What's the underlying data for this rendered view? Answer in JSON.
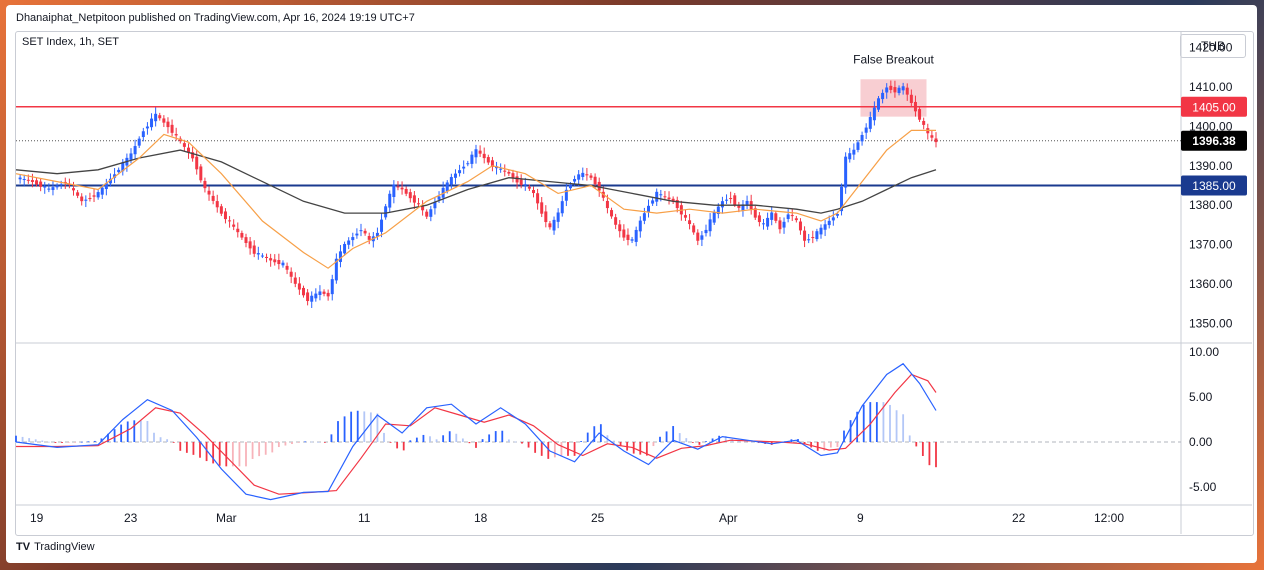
{
  "header": {
    "published": "Dhanaiphat_Netpitoon published on TradingView.com, Apr 16, 2024 19:19 UTC+7"
  },
  "symbol": "SET Index, 1h, SET",
  "currency": "THB",
  "footer": {
    "brand": "TradingView"
  },
  "colors": {
    "up": "#2962ff",
    "down": "#f23645",
    "ema_fast": "#f7a048",
    "ma_slow": "#444444",
    "resistance": "#f23645",
    "support": "#1a3a8f"
  },
  "chart_data": [
    {
      "type": "candlestick",
      "title": "SET Index, 1h, SET",
      "ylim": [
        1345,
        1424
      ],
      "yticks": [
        1350,
        1360,
        1370,
        1380,
        1390,
        1400,
        1410,
        1420
      ],
      "ytick_labels": [
        "1350.00",
        "1360.00",
        "1370.00",
        "1380.00",
        "1390.00",
        "1400.00",
        "1410.00",
        "1420.00"
      ],
      "xtick_labels": [
        "19",
        "23",
        "Mar",
        "11",
        "18",
        "25",
        "Apr",
        "9",
        "22",
        "12:00"
      ],
      "levels": [
        {
          "name": "resistance",
          "value": 1405.0,
          "label": "1405.00"
        },
        {
          "name": "support",
          "value": 1385.0,
          "label": "1385.00"
        }
      ],
      "last_price": {
        "value": 1396.38,
        "label": "1396.38"
      },
      "annotation": {
        "text": "False Breakout"
      },
      "close_path": [
        [
          0,
          1387
        ],
        [
          4,
          1386
        ],
        [
          8,
          1384
        ],
        [
          12,
          1386
        ],
        [
          16,
          1381
        ],
        [
          20,
          1383
        ],
        [
          24,
          1388
        ],
        [
          28,
          1393
        ],
        [
          31,
          1399
        ],
        [
          34,
          1403
        ],
        [
          37,
          1400
        ],
        [
          40,
          1396
        ],
        [
          43,
          1392
        ],
        [
          46,
          1384
        ],
        [
          50,
          1378
        ],
        [
          54,
          1373
        ],
        [
          58,
          1368
        ],
        [
          62,
          1366
        ],
        [
          65,
          1365
        ],
        [
          68,
          1360
        ],
        [
          71,
          1356
        ],
        [
          74,
          1358
        ],
        [
          76,
          1357
        ],
        [
          78,
          1366
        ],
        [
          80,
          1370
        ],
        [
          82,
          1372
        ],
        [
          84,
          1374
        ],
        [
          86,
          1371
        ],
        [
          88,
          1373
        ],
        [
          90,
          1380
        ],
        [
          92,
          1385
        ],
        [
          94,
          1384
        ],
        [
          96,
          1382
        ],
        [
          98,
          1380
        ],
        [
          100,
          1377
        ],
        [
          102,
          1381
        ],
        [
          104,
          1384
        ],
        [
          106,
          1387
        ],
        [
          108,
          1389
        ],
        [
          110,
          1391
        ],
        [
          112,
          1394
        ],
        [
          114,
          1392
        ],
        [
          116,
          1390
        ],
        [
          118,
          1389
        ],
        [
          120,
          1388
        ],
        [
          122,
          1386
        ],
        [
          124,
          1385
        ],
        [
          126,
          1383
        ],
        [
          128,
          1378
        ],
        [
          130,
          1374
        ],
        [
          132,
          1378
        ],
        [
          134,
          1384
        ],
        [
          136,
          1387
        ],
        [
          138,
          1388
        ],
        [
          140,
          1387
        ],
        [
          142,
          1384
        ],
        [
          144,
          1379
        ],
        [
          146,
          1375
        ],
        [
          148,
          1372
        ],
        [
          150,
          1371
        ],
        [
          152,
          1376
        ],
        [
          154,
          1380
        ],
        [
          156,
          1383
        ],
        [
          158,
          1382
        ],
        [
          160,
          1381
        ],
        [
          162,
          1378
        ],
        [
          164,
          1375
        ],
        [
          166,
          1371
        ],
        [
          168,
          1374
        ],
        [
          170,
          1378
        ],
        [
          172,
          1381
        ],
        [
          174,
          1382
        ],
        [
          176,
          1379
        ],
        [
          178,
          1381
        ],
        [
          180,
          1377
        ],
        [
          182,
          1375
        ],
        [
          184,
          1378
        ],
        [
          186,
          1374
        ],
        [
          188,
          1378
        ],
        [
          190,
          1376
        ],
        [
          192,
          1371
        ],
        [
          194,
          1372
        ],
        [
          196,
          1374
        ],
        [
          198,
          1376
        ],
        [
          200,
          1378
        ],
        [
          202,
          1392
        ],
        [
          204,
          1394
        ],
        [
          206,
          1398
        ],
        [
          208,
          1402
        ],
        [
          210,
          1407
        ],
        [
          212,
          1410
        ],
        [
          214,
          1409
        ],
        [
          216,
          1410
        ],
        [
          218,
          1406
        ],
        [
          220,
          1402
        ],
        [
          222,
          1398
        ],
        [
          224,
          1396
        ]
      ],
      "ema_fast_path": [
        [
          0,
          1388
        ],
        [
          10,
          1386
        ],
        [
          20,
          1384
        ],
        [
          30,
          1392
        ],
        [
          36,
          1398
        ],
        [
          42,
          1396
        ],
        [
          50,
          1388
        ],
        [
          60,
          1376
        ],
        [
          70,
          1368
        ],
        [
          76,
          1364
        ],
        [
          82,
          1369
        ],
        [
          90,
          1373
        ],
        [
          100,
          1381
        ],
        [
          110,
          1386
        ],
        [
          116,
          1390
        ],
        [
          124,
          1388
        ],
        [
          132,
          1383
        ],
        [
          140,
          1385
        ],
        [
          148,
          1379
        ],
        [
          156,
          1378
        ],
        [
          164,
          1379
        ],
        [
          172,
          1378
        ],
        [
          180,
          1379
        ],
        [
          190,
          1378
        ],
        [
          196,
          1376
        ],
        [
          200,
          1378
        ],
        [
          206,
          1386
        ],
        [
          212,
          1394
        ],
        [
          218,
          1399
        ],
        [
          224,
          1399
        ]
      ],
      "ma_slow_path": [
        [
          0,
          1389
        ],
        [
          10,
          1388
        ],
        [
          20,
          1389
        ],
        [
          30,
          1392
        ],
        [
          40,
          1394
        ],
        [
          50,
          1391
        ],
        [
          60,
          1386
        ],
        [
          70,
          1381
        ],
        [
          80,
          1378
        ],
        [
          90,
          1378
        ],
        [
          100,
          1380
        ],
        [
          110,
          1384
        ],
        [
          120,
          1387
        ],
        [
          130,
          1386
        ],
        [
          140,
          1385
        ],
        [
          150,
          1383
        ],
        [
          160,
          1381
        ],
        [
          170,
          1380
        ],
        [
          180,
          1380
        ],
        [
          190,
          1379
        ],
        [
          196,
          1378
        ],
        [
          200,
          1379
        ],
        [
          206,
          1381
        ],
        [
          212,
          1384
        ],
        [
          218,
          1387
        ],
        [
          224,
          1389
        ]
      ]
    },
    {
      "type": "macd",
      "ylim": [
        -7,
        11
      ],
      "yticks": [
        -5,
        0,
        5,
        10
      ],
      "ytick_labels": [
        "-5.00",
        "0.00",
        "5.00",
        "10.00"
      ],
      "series": [
        {
          "name": "MACD",
          "points": [
            [
              0,
              0
            ],
            [
              10,
              -0.6
            ],
            [
              20,
              -0.3
            ],
            [
              26,
              2.5
            ],
            [
              32,
              4.7
            ],
            [
              38,
              3.5
            ],
            [
              44,
              0.5
            ],
            [
              50,
              -3.0
            ],
            [
              56,
              -5.8
            ],
            [
              62,
              -6.4
            ],
            [
              70,
              -5.6
            ],
            [
              76,
              -5.5
            ],
            [
              82,
              -0.5
            ],
            [
              88,
              3.0
            ],
            [
              94,
              1.0
            ],
            [
              100,
              3.8
            ],
            [
              106,
              4.2
            ],
            [
              112,
              2.0
            ],
            [
              118,
              3.8
            ],
            [
              124,
              2.0
            ],
            [
              130,
              -1.0
            ],
            [
              136,
              -2.2
            ],
            [
              142,
              1.0
            ],
            [
              148,
              -1.0
            ],
            [
              154,
              -2.5
            ],
            [
              160,
              0.2
            ],
            [
              166,
              -0.8
            ],
            [
              172,
              0.6
            ],
            [
              178,
              0.2
            ],
            [
              184,
              -0.2
            ],
            [
              190,
              0.2
            ],
            [
              196,
              -1.5
            ],
            [
              200,
              -1.2
            ],
            [
              206,
              4.0
            ],
            [
              212,
              7.5
            ],
            [
              216,
              8.7
            ],
            [
              220,
              6.5
            ],
            [
              224,
              3.5
            ]
          ]
        },
        {
          "name": "Signal",
          "points": [
            [
              0,
              -0.5
            ],
            [
              10,
              -0.5
            ],
            [
              20,
              -0.4
            ],
            [
              28,
              1.5
            ],
            [
              34,
              3.8
            ],
            [
              40,
              3.2
            ],
            [
              46,
              0.8
            ],
            [
              52,
              -2.0
            ],
            [
              58,
              -4.8
            ],
            [
              64,
              -5.8
            ],
            [
              72,
              -5.6
            ],
            [
              78,
              -5.4
            ],
            [
              84,
              -1.8
            ],
            [
              90,
              2.0
            ],
            [
              96,
              1.8
            ],
            [
              102,
              3.8
            ],
            [
              108,
              3.0
            ],
            [
              114,
              2.2
            ],
            [
              120,
              3.0
            ],
            [
              126,
              1.8
            ],
            [
              132,
              -0.3
            ],
            [
              138,
              -1.5
            ],
            [
              144,
              -0.2
            ],
            [
              150,
              -0.6
            ],
            [
              156,
              -1.8
            ],
            [
              162,
              -0.7
            ],
            [
              168,
              -0.4
            ],
            [
              174,
              0.2
            ],
            [
              180,
              0.1
            ],
            [
              186,
              0
            ],
            [
              192,
              -0.2
            ],
            [
              198,
              -0.9
            ],
            [
              202,
              -0.7
            ],
            [
              208,
              2.0
            ],
            [
              214,
              5.5
            ],
            [
              218,
              7.5
            ],
            [
              222,
              6.8
            ],
            [
              224,
              5.5
            ]
          ]
        }
      ]
    }
  ]
}
